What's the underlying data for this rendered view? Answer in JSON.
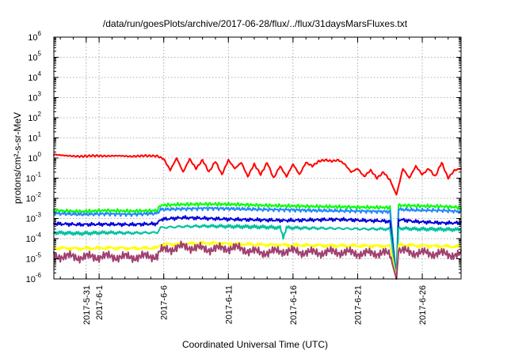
{
  "chart_data": {
    "type": "line",
    "title": "/data/run/goesPlots/archive/2017-06-28/flux/../flux/31daysMarsFluxes.txt",
    "xlabel": "Coordinated Universal Time (UTC)",
    "ylabel": "protons/cm²-s-sr-MeV",
    "yscale": "log",
    "ylim_exp": [
      -6,
      6
    ],
    "y_tick_exponents": [
      -6,
      -5,
      -4,
      -3,
      -2,
      -1,
      0,
      1,
      2,
      3,
      4,
      5,
      6
    ],
    "y_tick_base": "10",
    "xlim": [
      "2017-05-28T12:00",
      "2017-06-29T00:00"
    ],
    "x_ticks": [
      {
        "date": "2017-05-31T00:00",
        "label": "2017-5-31"
      },
      {
        "date": "2017-06-01T00:00",
        "label": "2017-6-1"
      },
      {
        "date": "2017-06-06T00:00",
        "label": "2017-6-6"
      },
      {
        "date": "2017-06-11T00:00",
        "label": "2017-6-11"
      },
      {
        "date": "2017-06-16T00:00",
        "label": "2017-6-16"
      },
      {
        "date": "2017-06-21T00:00",
        "label": "2017-6-21"
      },
      {
        "date": "2017-06-26T00:00",
        "label": "2017-6-26"
      }
    ],
    "grid": true,
    "dropout": {
      "start": "2017-06-23T16:00",
      "end": "2017-06-24T04:00"
    },
    "series": [
      {
        "color": "#ff0000",
        "x": [
          "2017-05-28T12:00",
          "2017-05-29T12:00",
          "2017-05-30T12:00",
          "2017-05-31T12:00",
          "2017-06-01T12:00",
          "2017-06-02T12:00",
          "2017-06-03T12:00",
          "2017-06-04T12:00",
          "2017-06-05T12:00",
          "2017-06-06T00:00",
          "2017-06-06T12:00",
          "2017-06-07T00:00",
          "2017-06-07T12:00",
          "2017-06-08T00:00",
          "2017-06-08T12:00",
          "2017-06-09T00:00",
          "2017-06-09T12:00",
          "2017-06-10T00:00",
          "2017-06-10T12:00",
          "2017-06-11T00:00",
          "2017-06-11T12:00",
          "2017-06-12T00:00",
          "2017-06-12T12:00",
          "2017-06-13T00:00",
          "2017-06-13T12:00",
          "2017-06-14T00:00",
          "2017-06-14T12:00",
          "2017-06-15T00:00",
          "2017-06-15T12:00",
          "2017-06-16T00:00",
          "2017-06-16T12:00",
          "2017-06-17T00:00",
          "2017-06-17T12:00",
          "2017-06-18T00:00",
          "2017-06-18T12:00",
          "2017-06-19T00:00",
          "2017-06-19T12:00",
          "2017-06-20T00:00",
          "2017-06-20T12:00",
          "2017-06-21T00:00",
          "2017-06-21T12:00",
          "2017-06-22T00:00",
          "2017-06-22T12:00",
          "2017-06-23T00:00",
          "2017-06-23T12:00",
          "2017-06-24T00:00",
          "2017-06-24T12:00",
          "2017-06-25T00:00",
          "2017-06-25T12:00",
          "2017-06-26T00:00",
          "2017-06-26T12:00",
          "2017-06-27T00:00",
          "2017-06-27T12:00",
          "2017-06-28T00:00",
          "2017-06-28T12:00",
          "2017-06-29T00:00"
        ],
        "y": [
          1.5,
          1.3,
          1.2,
          1.3,
          1.25,
          1.3,
          1.2,
          1.3,
          1.25,
          0.9,
          0.25,
          1.0,
          0.2,
          0.9,
          0.3,
          0.8,
          0.2,
          0.7,
          0.15,
          0.8,
          0.3,
          0.6,
          0.12,
          0.5,
          0.15,
          0.6,
          0.1,
          0.4,
          0.12,
          0.5,
          0.15,
          0.6,
          0.4,
          0.7,
          0.8,
          0.7,
          0.8,
          0.5,
          0.2,
          0.3,
          0.12,
          0.25,
          0.1,
          0.2,
          0.08,
          0.015,
          0.3,
          0.1,
          0.4,
          0.15,
          0.3,
          0.12,
          0.6,
          0.1,
          0.25,
          0.3
        ]
      },
      {
        "color": "#00ff00",
        "x": [
          "2017-05-28T12:00",
          "2017-05-30T12:00",
          "2017-06-01T12:00",
          "2017-06-03T12:00",
          "2017-06-05T12:00",
          "2017-06-05T18:00",
          "2017-06-07T12:00",
          "2017-06-09T12:00",
          "2017-06-11T12:00",
          "2017-06-13T12:00",
          "2017-06-15T12:00",
          "2017-06-17T12:00",
          "2017-06-19T12:00",
          "2017-06-21T12:00",
          "2017-06-23T00:00",
          "2017-06-23T12:00",
          "2017-06-24T00:00",
          "2017-06-24T04:00",
          "2017-06-25T12:00",
          "2017-06-27T12:00",
          "2017-06-29T00:00"
        ],
        "y": [
          0.0025,
          0.0022,
          0.0025,
          0.0023,
          0.0025,
          0.0045,
          0.005,
          0.0052,
          0.005,
          0.0045,
          0.0042,
          0.004,
          0.0038,
          0.0036,
          0.0035,
          0.0035,
          1e-06,
          0.0045,
          0.0042,
          0.004,
          0.0035
        ]
      },
      {
        "color": "#2288ff",
        "x": [
          "2017-05-28T12:00",
          "2017-05-30T12:00",
          "2017-06-01T12:00",
          "2017-06-03T12:00",
          "2017-06-05T12:00",
          "2017-06-05T18:00",
          "2017-06-07T12:00",
          "2017-06-09T12:00",
          "2017-06-11T12:00",
          "2017-06-13T12:00",
          "2017-06-15T12:00",
          "2017-06-17T12:00",
          "2017-06-19T12:00",
          "2017-06-21T12:00",
          "2017-06-23T00:00",
          "2017-06-23T12:00",
          "2017-06-24T00:00",
          "2017-06-24T04:00",
          "2017-06-25T12:00",
          "2017-06-27T12:00",
          "2017-06-29T00:00"
        ],
        "y": [
          0.0018,
          0.0016,
          0.0017,
          0.0016,
          0.0018,
          0.0028,
          0.003,
          0.0032,
          0.003,
          0.0028,
          0.0027,
          0.0025,
          0.0024,
          0.0023,
          0.0022,
          0.0022,
          1e-06,
          0.0028,
          0.0026,
          0.0025,
          0.0022
        ]
      },
      {
        "color": "#0000dd",
        "x": [
          "2017-05-28T12:00",
          "2017-05-30T12:00",
          "2017-06-01T12:00",
          "2017-06-03T12:00",
          "2017-06-05T12:00",
          "2017-06-05T18:00",
          "2017-06-07T12:00",
          "2017-06-09T12:00",
          "2017-06-11T12:00",
          "2017-06-13T12:00",
          "2017-06-15T12:00",
          "2017-06-17T12:00",
          "2017-06-19T12:00",
          "2017-06-21T12:00",
          "2017-06-23T00:00",
          "2017-06-23T12:00",
          "2017-06-24T00:00",
          "2017-06-24T04:00",
          "2017-06-25T12:00",
          "2017-06-27T12:00",
          "2017-06-29T00:00"
        ],
        "y": [
          0.00055,
          0.0005,
          0.00052,
          0.0005,
          0.00055,
          0.0009,
          0.0011,
          0.001,
          0.0009,
          0.00085,
          0.0008,
          0.00085,
          0.0009,
          0.0008,
          0.00075,
          0.0007,
          1e-06,
          0.0009,
          0.0007,
          0.0006,
          0.0006
        ]
      },
      {
        "color": "#00c0a0",
        "x": [
          "2017-05-28T12:00",
          "2017-05-30T12:00",
          "2017-06-01T12:00",
          "2017-06-03T12:00",
          "2017-06-05T12:00",
          "2017-06-05T18:00",
          "2017-06-07T12:00",
          "2017-06-09T12:00",
          "2017-06-11T12:00",
          "2017-06-13T12:00",
          "2017-06-15T00:00",
          "2017-06-15T06:00",
          "2017-06-15T12:00",
          "2017-06-17T12:00",
          "2017-06-19T12:00",
          "2017-06-21T12:00",
          "2017-06-23T00:00",
          "2017-06-23T12:00",
          "2017-06-24T00:00",
          "2017-06-24T04:00",
          "2017-06-25T12:00",
          "2017-06-27T12:00",
          "2017-06-29T00:00"
        ],
        "y": [
          0.0002,
          0.00018,
          0.0002,
          0.00019,
          0.0002,
          0.00035,
          0.0004,
          0.00042,
          0.0004,
          0.00038,
          0.00035,
          0.00012,
          0.00035,
          0.00033,
          0.00032,
          0.0003,
          0.0003,
          0.0003,
          1e-06,
          0.00033,
          0.0003,
          0.00029,
          0.00028
        ]
      },
      {
        "color": "#ffff00",
        "x": [
          "2017-05-28T12:00",
          "2017-05-30T12:00",
          "2017-06-01T12:00",
          "2017-06-03T12:00",
          "2017-06-05T12:00",
          "2017-06-05T18:00",
          "2017-06-07T12:00",
          "2017-06-09T12:00",
          "2017-06-11T12:00",
          "2017-06-13T12:00",
          "2017-06-15T12:00",
          "2017-06-17T12:00",
          "2017-06-19T12:00",
          "2017-06-21T12:00",
          "2017-06-23T00:00",
          "2017-06-23T12:00",
          "2017-06-24T00:00",
          "2017-06-24T04:00",
          "2017-06-25T12:00",
          "2017-06-27T12:00",
          "2017-06-29T00:00"
        ],
        "y": [
          3.5e-05,
          3.2e-05,
          3.5e-05,
          3.3e-05,
          3.5e-05,
          5e-05,
          5.5e-05,
          6e-05,
          5.5e-05,
          5e-05,
          4.8e-05,
          4.6e-05,
          4.5e-05,
          4.4e-05,
          4.3e-05,
          4.2e-05,
          1e-06,
          5e-05,
          4.5e-05,
          4.2e-05,
          4e-05
        ]
      },
      {
        "color": "#a04070",
        "x": [
          "2017-05-28T12:00",
          "2017-05-30T12:00",
          "2017-06-01T12:00",
          "2017-06-03T12:00",
          "2017-06-05T12:00",
          "2017-06-05T18:00",
          "2017-06-07T12:00",
          "2017-06-09T12:00",
          "2017-06-11T12:00",
          "2017-06-13T12:00",
          "2017-06-15T12:00",
          "2017-06-17T12:00",
          "2017-06-19T12:00",
          "2017-06-21T12:00",
          "2017-06-23T00:00",
          "2017-06-23T12:00",
          "2017-06-24T00:00",
          "2017-06-24T04:00",
          "2017-06-25T12:00",
          "2017-06-27T12:00",
          "2017-06-29T00:00"
        ],
        "y": [
          1.4e-05,
          1.2e-05,
          1.3e-05,
          1.2e-05,
          1.4e-05,
          2.5e-05,
          4e-05,
          3e-05,
          3.5e-05,
          2e-05,
          2.5e-05,
          2e-05,
          2.2e-05,
          1.8e-05,
          2e-05,
          1.5e-05,
          1e-06,
          2.5e-05,
          2e-05,
          1.8e-05,
          1.5e-05
        ]
      }
    ]
  }
}
